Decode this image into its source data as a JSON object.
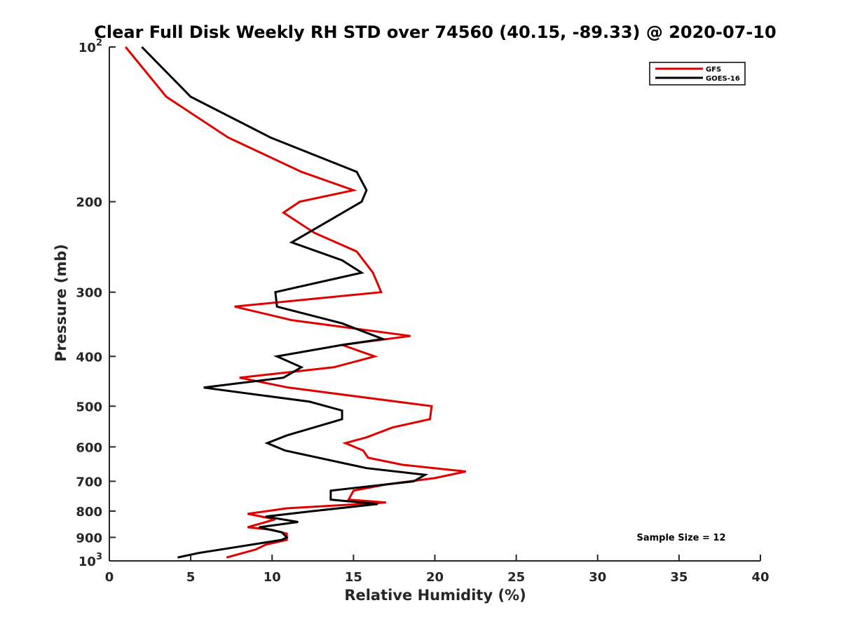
{
  "chart_data": {
    "type": "line",
    "title": "Clear Full Disk Weekly RH STD over 74560 (40.15, -89.33) @ 2020-07-10",
    "xlabel": "Relative Humidity (%)",
    "ylabel": "Pressure (mb)",
    "xlim": [
      0,
      40
    ],
    "ylim": [
      1000,
      100
    ],
    "y_scale": "log",
    "y_reversed": true,
    "grid": false,
    "x_ticks": [
      0,
      5,
      10,
      15,
      20,
      25,
      30,
      35,
      40
    ],
    "x_tick_labels": [
      "0",
      "5",
      "10",
      "15",
      "20",
      "25",
      "30",
      "35",
      "40"
    ],
    "y_ticks": [
      100,
      200,
      300,
      400,
      500,
      600,
      700,
      800,
      900,
      1000
    ],
    "y_tick_labels": [
      {
        "base": "10",
        "exp": "2"
      },
      {
        "base": "200"
      },
      {
        "base": "300"
      },
      {
        "base": "400"
      },
      {
        "base": "500"
      },
      {
        "base": "600"
      },
      {
        "base": "700"
      },
      {
        "base": "800"
      },
      {
        "base": "900"
      },
      {
        "base": "10",
        "exp": "3"
      }
    ],
    "legend_position": "top-right",
    "series": [
      {
        "name": "GFS",
        "color": "#e00000",
        "points": [
          [
            1.0,
            100
          ],
          [
            3.5,
            125
          ],
          [
            7.3,
            150
          ],
          [
            11.8,
            175
          ],
          [
            15.0,
            190
          ],
          [
            11.7,
            200
          ],
          [
            10.7,
            210
          ],
          [
            12.6,
            230
          ],
          [
            15.2,
            250
          ],
          [
            16.2,
            275
          ],
          [
            16.7,
            300
          ],
          [
            7.7,
            320
          ],
          [
            11.2,
            340
          ],
          [
            18.5,
            365
          ],
          [
            14.3,
            380
          ],
          [
            16.3,
            400
          ],
          [
            13.8,
            420
          ],
          [
            8.0,
            440
          ],
          [
            11.0,
            460
          ],
          [
            19.8,
            500
          ],
          [
            19.7,
            530
          ],
          [
            17.4,
            550
          ],
          [
            15.8,
            575
          ],
          [
            14.5,
            590
          ],
          [
            15.6,
            610
          ],
          [
            15.9,
            630
          ],
          [
            18.0,
            650
          ],
          [
            21.9,
            670
          ],
          [
            20.0,
            690
          ],
          [
            17.0,
            710
          ],
          [
            15.0,
            730
          ],
          [
            14.7,
            760
          ],
          [
            17.0,
            770
          ],
          [
            10.9,
            790
          ],
          [
            8.5,
            810
          ],
          [
            10.2,
            830
          ],
          [
            8.5,
            860
          ],
          [
            10.0,
            870
          ],
          [
            10.9,
            885
          ],
          [
            10.9,
            910
          ],
          [
            9.6,
            930
          ],
          [
            9.0,
            950
          ],
          [
            7.2,
            985
          ]
        ]
      },
      {
        "name": "GOES-16",
        "color": "#000000",
        "points": [
          [
            2.0,
            100
          ],
          [
            5.0,
            125
          ],
          [
            9.9,
            150
          ],
          [
            15.2,
            175
          ],
          [
            15.8,
            190
          ],
          [
            15.5,
            200
          ],
          [
            13.8,
            215
          ],
          [
            11.2,
            240
          ],
          [
            14.3,
            260
          ],
          [
            15.5,
            275
          ],
          [
            10.2,
            300
          ],
          [
            10.3,
            320
          ],
          [
            14.3,
            345
          ],
          [
            16.8,
            370
          ],
          [
            14.3,
            380
          ],
          [
            10.3,
            400
          ],
          [
            11.8,
            420
          ],
          [
            10.7,
            440
          ],
          [
            5.8,
            460
          ],
          [
            12.3,
            490
          ],
          [
            14.3,
            510
          ],
          [
            14.3,
            530
          ],
          [
            10.9,
            570
          ],
          [
            9.7,
            590
          ],
          [
            10.8,
            610
          ],
          [
            15.8,
            660
          ],
          [
            19.4,
            680
          ],
          [
            18.7,
            700
          ],
          [
            13.6,
            730
          ],
          [
            13.6,
            760
          ],
          [
            16.5,
            775
          ],
          [
            12.5,
            800
          ],
          [
            9.6,
            820
          ],
          [
            11.6,
            840
          ],
          [
            9.2,
            860
          ],
          [
            10.6,
            880
          ],
          [
            10.9,
            900
          ],
          [
            10.6,
            910
          ],
          [
            7.8,
            940
          ],
          [
            5.5,
            965
          ],
          [
            4.2,
            985
          ]
        ]
      }
    ],
    "annotations": [
      {
        "text": "Sample Size = 12"
      }
    ]
  }
}
